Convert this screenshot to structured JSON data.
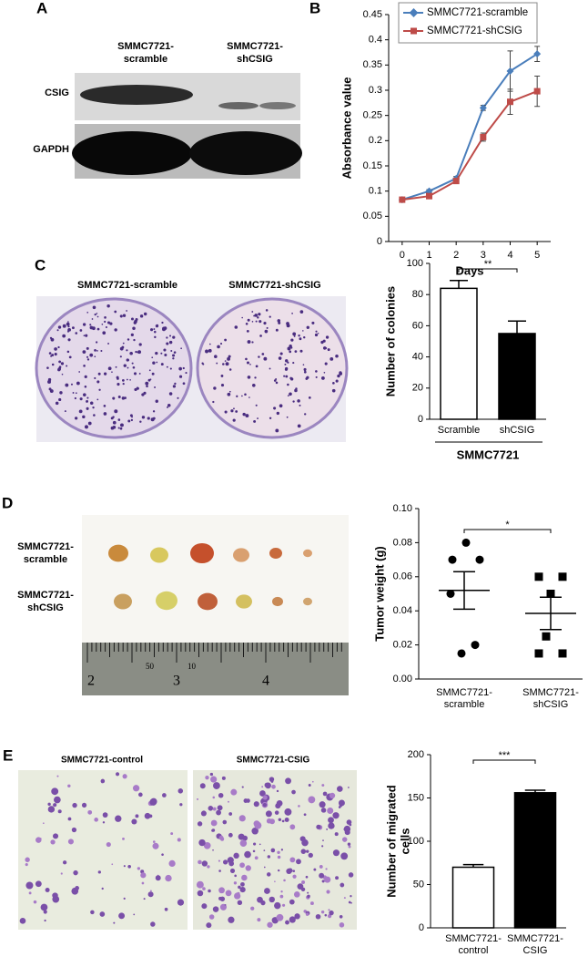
{
  "panel_labels": [
    "A",
    "B",
    "C",
    "D",
    "E"
  ],
  "blot": {
    "lane_labels": [
      [
        "SMMC7721-",
        "scramble"
      ],
      [
        "SMMC7721-",
        "shCSIG"
      ]
    ],
    "row_labels": [
      "CSIG",
      "GAPDH"
    ]
  },
  "dishes": {
    "labels": [
      "SMMC7721-scramble",
      "SMMC7721-shCSIG"
    ]
  },
  "tumors": {
    "row_labels": [
      [
        "SMMC7721-",
        "scramble"
      ],
      [
        "SMMC7721-",
        "shCSIG"
      ]
    ],
    "ruler_numbers": [
      "2",
      "50",
      "3",
      "10",
      "4"
    ]
  },
  "migration": {
    "labels": [
      "SMMC7721-control",
      "SMMC7721-CSIG"
    ]
  },
  "chart_data": [
    {
      "type": "line",
      "xlabel": "Days",
      "ylabel": "Absorbance value",
      "x": [
        0,
        1,
        2,
        3,
        4,
        5
      ],
      "xlim": [
        -0.5,
        5.5
      ],
      "xticks": [
        0,
        1,
        2,
        3,
        4,
        5
      ],
      "ylim": [
        0,
        0.45
      ],
      "yticks": [
        0,
        0.05,
        0.1,
        0.15,
        0.2,
        0.25,
        0.3,
        0.35,
        0.4,
        0.45
      ],
      "legend": "top-right",
      "series": [
        {
          "name": "SMMC7721-scramble",
          "color": "#4a7ebb",
          "marker": "diamond",
          "values": [
            0.083,
            0.1,
            0.125,
            0.265,
            0.338,
            0.372
          ],
          "errors": [
            0.003,
            0.003,
            0.004,
            0.005,
            0.04,
            0.015
          ]
        },
        {
          "name": "SMMC7721-shCSIG",
          "color": "#be4b48",
          "marker": "square",
          "values": [
            0.083,
            0.09,
            0.12,
            0.207,
            0.277,
            0.298
          ],
          "errors": [
            0.003,
            0.003,
            0.004,
            0.008,
            0.025,
            0.03
          ]
        }
      ]
    },
    {
      "type": "bar",
      "ylabel": "Number of colonies",
      "group_label": "SMMC7721",
      "significance": "**",
      "categories": [
        "Scramble",
        "shCSIG"
      ],
      "values": [
        84,
        55
      ],
      "errors": [
        5,
        8
      ],
      "colors": [
        "#ffffff",
        "#000000"
      ],
      "ylim": [
        0,
        100
      ],
      "yticks": [
        0,
        20,
        40,
        60,
        80,
        100
      ]
    },
    {
      "type": "scatter",
      "ylabel": "Tumor weight (g)",
      "significance": "*",
      "categories": [
        [
          "SMMC7721-",
          "scramble"
        ],
        [
          "SMMC7721-",
          "shCSIG"
        ]
      ],
      "series": [
        {
          "marker": "circle",
          "color": "#000000",
          "values": [
            0.08,
            0.07,
            0.07,
            0.05,
            0.02,
            0.015
          ],
          "mean": 0.052,
          "error": 0.011
        },
        {
          "marker": "square",
          "color": "#000000",
          "values": [
            0.06,
            0.06,
            0.05,
            0.025,
            0.015,
            0.015
          ],
          "mean": 0.0385,
          "error": 0.0095
        }
      ],
      "ylim": [
        0,
        0.1
      ],
      "yticks": [
        {
          "value": 0,
          "label": "0.00"
        },
        0.02,
        0.04,
        0.06,
        0.08,
        {
          "value": 0.1,
          "label": "0.10"
        }
      ]
    },
    {
      "type": "bar",
      "ylabel": [
        "Number of migrated",
        "cells"
      ],
      "significance": "***",
      "categories": [
        [
          "SMMC7721-",
          "control"
        ],
        [
          "SMMC7721-",
          "CSIG"
        ]
      ],
      "values": [
        70,
        156
      ],
      "errors": [
        3,
        3
      ],
      "colors": [
        "#ffffff",
        "#000000"
      ],
      "ylim": [
        0,
        200
      ],
      "yticks": [
        0,
        50,
        100,
        150,
        200
      ]
    }
  ]
}
